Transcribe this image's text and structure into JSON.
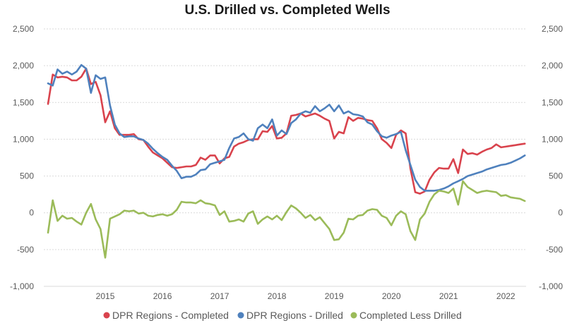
{
  "chart_data": {
    "type": "line",
    "title": "U.S. Drilled vs. Completed Wells",
    "xlabel": "",
    "ylabel": "",
    "x_ticks": [
      "2015",
      "2016",
      "2017",
      "2018",
      "2019",
      "2020",
      "2021",
      "2022"
    ],
    "x_range": [
      2014.0,
      2022.33
    ],
    "ylim": [
      -1000,
      2500
    ],
    "y_ticks": [
      "2,500",
      "2,000",
      "1,500",
      "1,000",
      "500",
      "0",
      "-500",
      "-1,000"
    ],
    "y_tick_values": [
      2500,
      2000,
      1500,
      1000,
      500,
      0,
      -500,
      -1000
    ],
    "right_axis_same_scale": true,
    "grid": true,
    "legend_position": "bottom",
    "x": [
      2014.0,
      2014.083,
      2014.167,
      2014.25,
      2014.333,
      2014.417,
      2014.5,
      2014.583,
      2014.667,
      2014.75,
      2014.833,
      2014.917,
      2015.0,
      2015.083,
      2015.167,
      2015.25,
      2015.333,
      2015.417,
      2015.5,
      2015.583,
      2015.667,
      2015.75,
      2015.833,
      2015.917,
      2016.0,
      2016.083,
      2016.167,
      2016.25,
      2016.333,
      2016.417,
      2016.5,
      2016.583,
      2016.667,
      2016.75,
      2016.833,
      2016.917,
      2017.0,
      2017.083,
      2017.167,
      2017.25,
      2017.333,
      2017.417,
      2017.5,
      2017.583,
      2017.667,
      2017.75,
      2017.833,
      2017.917,
      2018.0,
      2018.083,
      2018.167,
      2018.25,
      2018.333,
      2018.417,
      2018.5,
      2018.583,
      2018.667,
      2018.75,
      2018.833,
      2018.917,
      2019.0,
      2019.083,
      2019.167,
      2019.25,
      2019.333,
      2019.417,
      2019.5,
      2019.583,
      2019.667,
      2019.75,
      2019.833,
      2019.917,
      2020.0,
      2020.083,
      2020.167,
      2020.25,
      2020.333,
      2020.417,
      2020.5,
      2020.583,
      2020.667,
      2020.75,
      2020.833,
      2020.917,
      2021.0,
      2021.083,
      2021.167,
      2021.25,
      2021.333,
      2021.417,
      2021.5,
      2021.583,
      2021.667,
      2021.75,
      2021.833,
      2021.917,
      2022.0,
      2022.083,
      2022.167,
      2022.25,
      2022.333
    ],
    "series": [
      {
        "name": "DPR Regions - Completed",
        "color": "#d9434d",
        "axis": "left",
        "values": [
          1480,
          1880,
          1840,
          1850,
          1840,
          1800,
          1800,
          1850,
          1960,
          1750,
          1780,
          1600,
          1230,
          1380,
          1150,
          1060,
          1060,
          1060,
          1070,
          1000,
          990,
          900,
          820,
          780,
          740,
          680,
          620,
          610,
          620,
          630,
          630,
          650,
          750,
          720,
          780,
          780,
          670,
          740,
          760,
          900,
          940,
          960,
          990,
          1000,
          1000,
          1110,
          1100,
          1180,
          1010,
          1020,
          1080,
          1320,
          1330,
          1350,
          1310,
          1330,
          1350,
          1320,
          1280,
          1250,
          1010,
          1100,
          1080,
          1300,
          1250,
          1290,
          1280,
          1260,
          1250,
          1150,
          1000,
          950,
          880,
          1060,
          1120,
          1080,
          600,
          280,
          260,
          290,
          450,
          550,
          610,
          600,
          600,
          730,
          540,
          860,
          800,
          810,
          790,
          830,
          860,
          880,
          930,
          890,
          900,
          910,
          920,
          930,
          940
        ]
      },
      {
        "name": "DPR Regions - Drilled",
        "color": "#4f81bd",
        "axis": "left",
        "values": [
          1760,
          1730,
          1950,
          1890,
          1920,
          1880,
          1920,
          2010,
          1960,
          1630,
          1870,
          1820,
          1840,
          1460,
          1200,
          1080,
          1030,
          1040,
          1040,
          1010,
          990,
          940,
          870,
          810,
          760,
          720,
          640,
          570,
          470,
          490,
          490,
          520,
          580,
          590,
          660,
          680,
          700,
          720,
          880,
          1010,
          1030,
          1080,
          1000,
          980,
          1150,
          1200,
          1150,
          1270,
          1050,
          1120,
          1070,
          1220,
          1270,
          1350,
          1380,
          1360,
          1450,
          1380,
          1420,
          1470,
          1380,
          1460,
          1350,
          1380,
          1340,
          1330,
          1310,
          1230,
          1200,
          1110,
          1040,
          1020,
          1050,
          1070,
          1100,
          850,
          650,
          450,
          350,
          300,
          300,
          300,
          310,
          330,
          360,
          400,
          430,
          460,
          500,
          520,
          540,
          560,
          590,
          610,
          630,
          650,
          660,
          680,
          710,
          740,
          780
        ]
      },
      {
        "name": "Completed Less Drilled",
        "color": "#9bbb59",
        "axis": "right",
        "values": [
          -270,
          170,
          -110,
          -40,
          -80,
          -70,
          -120,
          -160,
          0,
          120,
          -90,
          -220,
          -610,
          -80,
          -50,
          -20,
          30,
          20,
          30,
          -10,
          0,
          -40,
          -50,
          -30,
          -20,
          -40,
          -20,
          40,
          150,
          140,
          140,
          130,
          170,
          130,
          120,
          100,
          -30,
          20,
          -120,
          -110,
          -90,
          -120,
          -10,
          20,
          -150,
          -90,
          -50,
          -90,
          -40,
          -100,
          10,
          100,
          60,
          0,
          -70,
          -30,
          -100,
          -60,
          -140,
          -220,
          -370,
          -360,
          -270,
          -80,
          -90,
          -40,
          -30,
          30,
          50,
          40,
          -40,
          -70,
          -170,
          -40,
          20,
          -20,
          -250,
          -370,
          -90,
          -10,
          150,
          250,
          300,
          290,
          270,
          330,
          110,
          430,
          350,
          310,
          270,
          290,
          300,
          290,
          280,
          230,
          240,
          210,
          200,
          190,
          160
        ]
      }
    ]
  }
}
